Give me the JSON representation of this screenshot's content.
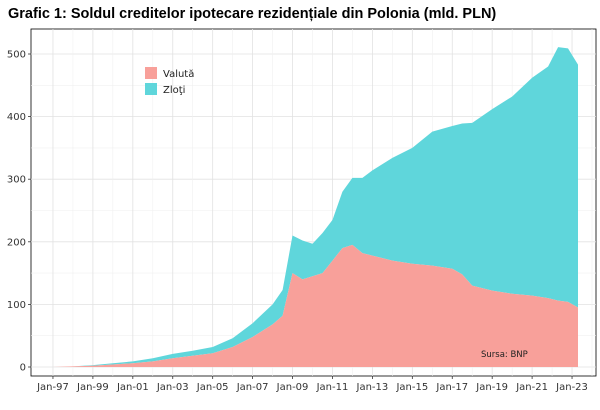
{
  "chart_data": {
    "type": "area",
    "stacked": true,
    "title": "Grafic 1: Soldul creditelor ipotecare rezidențiale din Polonia (mld. PLN)",
    "xlabel": "",
    "ylabel": "",
    "ylim": [
      0,
      535
    ],
    "yticks": [
      0,
      100,
      200,
      300,
      400,
      500
    ],
    "xtick_labels": [
      "Jan-97",
      "Jan-99",
      "Jan-01",
      "Jan-03",
      "Jan-05",
      "Jan-07",
      "Jan-09",
      "Jan-11",
      "Jan-13",
      "Jan-15",
      "Jan-17",
      "Jan-19",
      "Jan-21",
      "Jan-23"
    ],
    "x": [
      1997.0,
      1998.0,
      1999.0,
      2000.0,
      2001.0,
      2002.0,
      2003.0,
      2004.0,
      2005.0,
      2006.0,
      2007.0,
      2008.0,
      2008.5,
      2009.0,
      2009.5,
      2010.0,
      2010.5,
      2011.0,
      2011.5,
      2012.0,
      2012.5,
      2013.0,
      2014.0,
      2015.0,
      2016.0,
      2017.0,
      2017.5,
      2018.0,
      2019.0,
      2020.0,
      2021.0,
      2021.8,
      2022.3,
      2022.8,
      2023.3
    ],
    "series": [
      {
        "name": "Valută",
        "color": "#F8A09A",
        "values": [
          0,
          1,
          2,
          4,
          6,
          9,
          14,
          18,
          22,
          32,
          48,
          68,
          82,
          150,
          140,
          145,
          150,
          170,
          190,
          195,
          182,
          178,
          170,
          165,
          162,
          157,
          148,
          130,
          122,
          117,
          114,
          110,
          106,
          104,
          95
        ]
      },
      {
        "name": "Zloţi",
        "color": "#5FD6DB",
        "values": [
          0,
          0,
          1,
          2,
          3,
          5,
          7,
          8,
          10,
          14,
          22,
          32,
          41,
          60,
          62,
          52,
          64,
          65,
          90,
          107,
          120,
          136,
          164,
          185,
          214,
          228,
          241,
          260,
          290,
          315,
          348,
          370,
          405,
          405,
          388
        ]
      }
    ],
    "grid": true,
    "legend": "top-left",
    "source": "Sursa: BNP"
  }
}
